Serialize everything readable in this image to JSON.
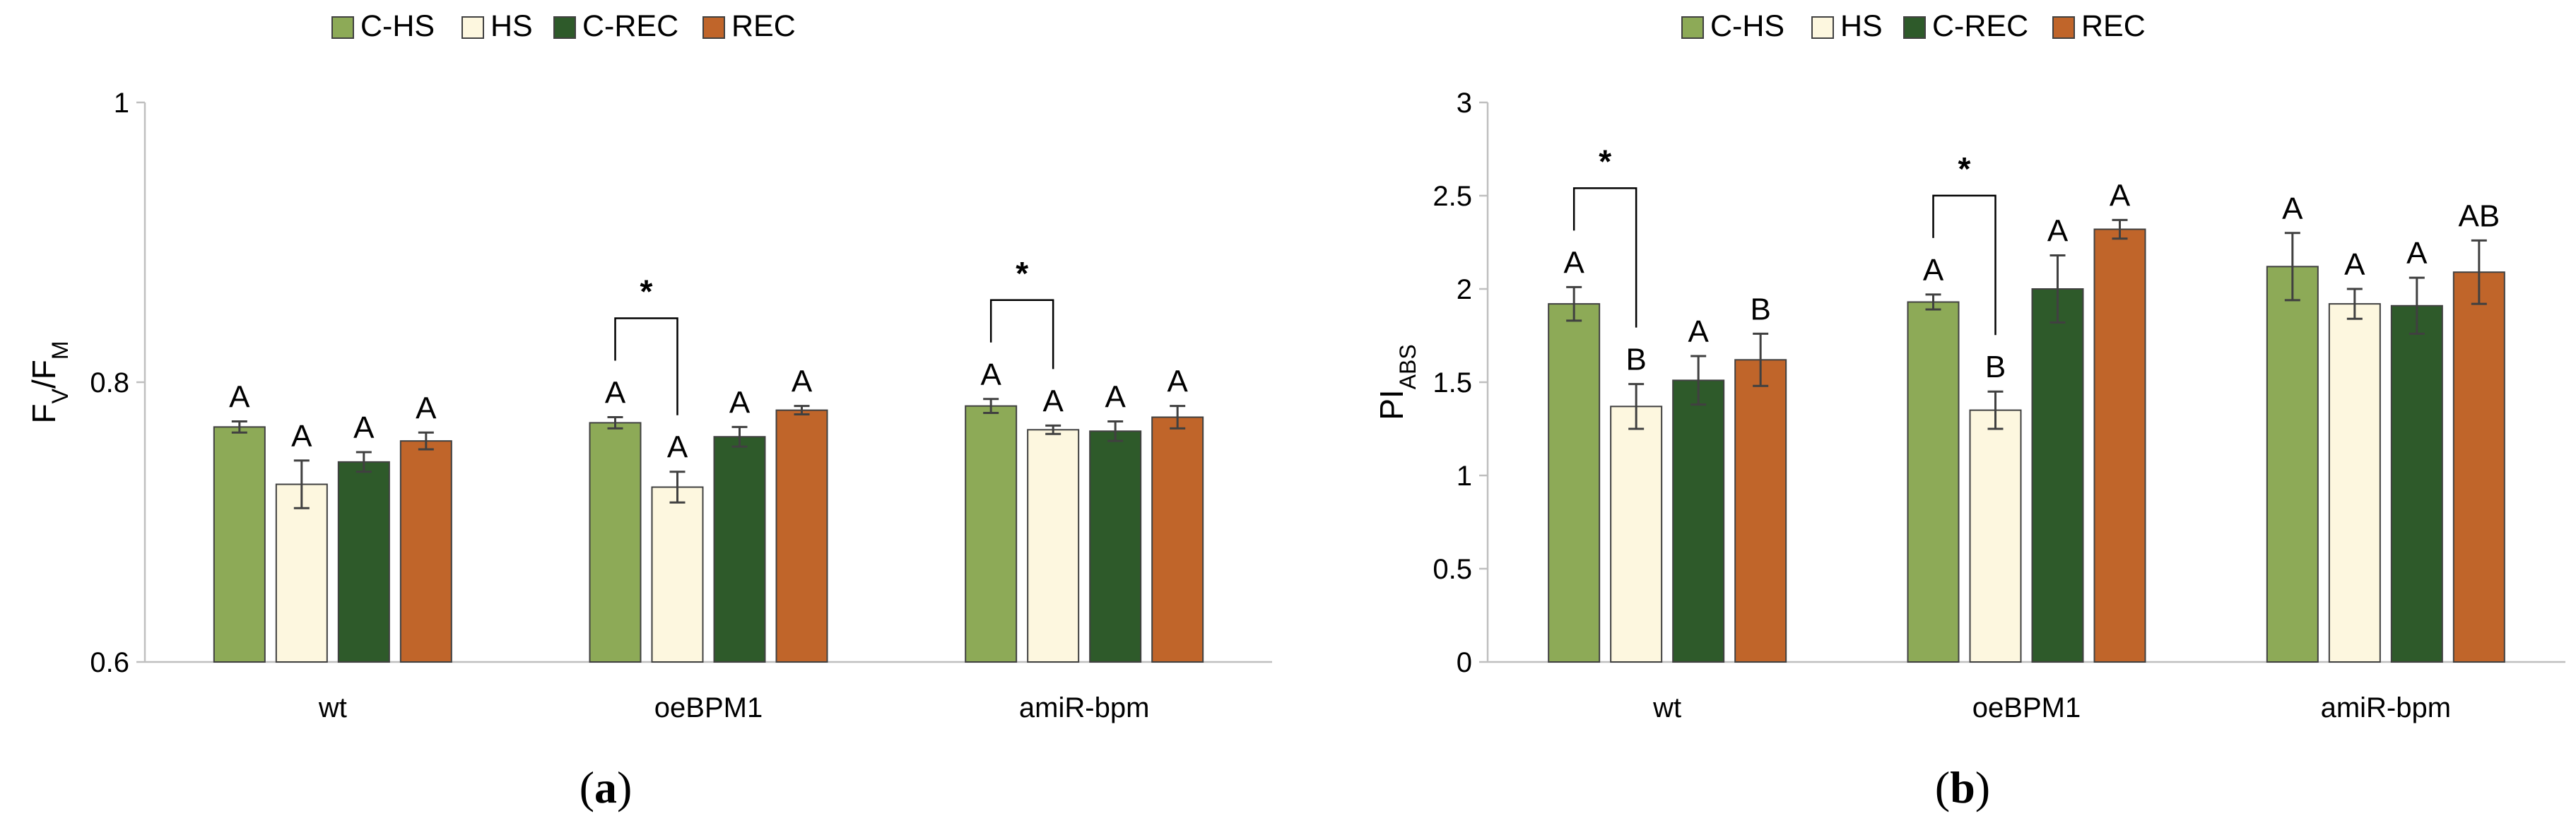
{
  "legend_colors": {
    "C-HS": "#8daa57",
    "HS": "#fdf7df",
    "C-REC": "#2e5a2a",
    "REC": "#c0652a"
  },
  "chart_data": [
    {
      "type": "bar",
      "panel_label": "(a)",
      "panel_label_letter": "a",
      "ylabel_main": "F",
      "ylabel_sub1": "V",
      "ylabel_slash": "/F",
      "ylabel_sub2": "M",
      "ylim": [
        0.6,
        1.0
      ],
      "yticks": [
        0.6,
        0.8,
        1.0
      ],
      "ytick_labels": [
        "0.6",
        "0.8",
        "1"
      ],
      "categories": [
        "wt",
        "oeBPM1",
        "amiR-bpm"
      ],
      "series": [
        {
          "name": "C-HS",
          "values": [
            0.768,
            0.771,
            0.783
          ],
          "errors": [
            0.004,
            0.004,
            0.005
          ],
          "labels": [
            "A",
            "A",
            "A"
          ]
        },
        {
          "name": "HS",
          "values": [
            0.727,
            0.725,
            0.766
          ],
          "errors": [
            0.017,
            0.011,
            0.003
          ],
          "labels": [
            "A",
            "A",
            "A"
          ]
        },
        {
          "name": "C-REC",
          "values": [
            0.743,
            0.761,
            0.765
          ],
          "errors": [
            0.007,
            0.007,
            0.007
          ],
          "labels": [
            "A",
            "A",
            "A"
          ]
        },
        {
          "name": "REC",
          "values": [
            0.758,
            0.78,
            0.775
          ],
          "errors": [
            0.006,
            0.003,
            0.008
          ],
          "labels": [
            "A",
            "A",
            "A"
          ]
        }
      ],
      "annotations": [
        {
          "category": "oeBPM1",
          "from_series": 0,
          "to_series": 1,
          "label": "*"
        },
        {
          "category": "amiR-bpm",
          "from_series": 0,
          "to_series": 1,
          "label": "*"
        }
      ]
    },
    {
      "type": "bar",
      "panel_label": "(b)",
      "panel_label_letter": "b",
      "ylabel_main": "PI",
      "ylabel_sub1": "ABS",
      "ylabel_slash": "",
      "ylabel_sub2": "",
      "ylim": [
        0,
        3
      ],
      "yticks": [
        0,
        0.5,
        1,
        1.5,
        2,
        2.5,
        3
      ],
      "ytick_labels": [
        "0",
        "0.5",
        "1",
        "1.5",
        "2",
        "2.5",
        "3"
      ],
      "categories": [
        "wt",
        "oeBPM1",
        "amiR-bpm"
      ],
      "series": [
        {
          "name": "C-HS",
          "values": [
            1.92,
            1.93,
            2.12
          ],
          "errors": [
            0.09,
            0.04,
            0.18
          ],
          "labels": [
            "A",
            "A",
            "A"
          ]
        },
        {
          "name": "HS",
          "values": [
            1.37,
            1.35,
            1.92
          ],
          "errors": [
            0.12,
            0.1,
            0.08
          ],
          "labels": [
            "B",
            "B",
            "A"
          ]
        },
        {
          "name": "C-REC",
          "values": [
            1.51,
            2.0,
            1.91
          ],
          "errors": [
            0.13,
            0.18,
            0.15
          ],
          "labels": [
            "A",
            "A",
            "A"
          ]
        },
        {
          "name": "REC",
          "values": [
            1.62,
            2.32,
            2.09
          ],
          "errors": [
            0.14,
            0.05,
            0.17
          ],
          "labels": [
            "B",
            "A",
            "AB"
          ]
        }
      ],
      "annotations": [
        {
          "category": "wt",
          "from_series": 0,
          "to_series": 1,
          "label": "*"
        },
        {
          "category": "oeBPM1",
          "from_series": 0,
          "to_series": 1,
          "label": "*"
        }
      ]
    }
  ]
}
